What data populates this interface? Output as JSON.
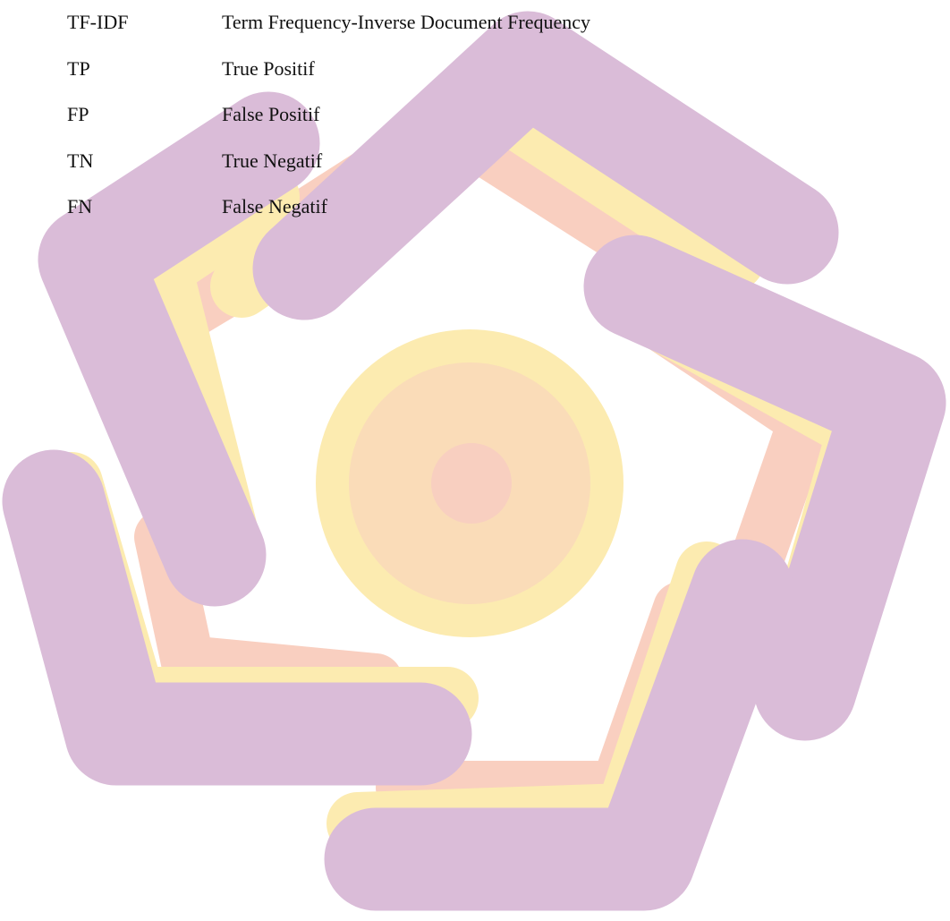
{
  "abbreviations": [
    [
      "TF-IDF",
      "Term Frequency-Inverse Document Frequency"
    ],
    [
      "TP",
      "True Positif"
    ],
    [
      "FP",
      "False Positif"
    ],
    [
      "TN",
      "True Negatif"
    ],
    [
      "FN",
      "False Negatif"
    ]
  ]
}
